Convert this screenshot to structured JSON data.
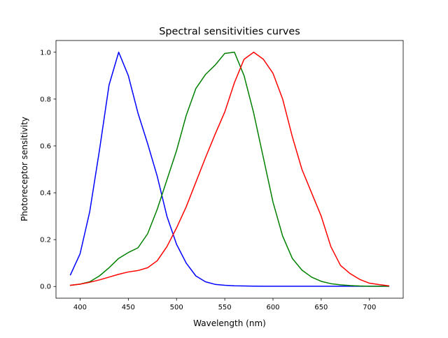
{
  "chart_data": {
    "type": "line",
    "title": "Spectral sensitivities curves",
    "xlabel": "Wavelength (nm)",
    "ylabel": "Photoreceptor sensitivity",
    "xlim": [
      375,
      735
    ],
    "ylim": [
      -0.05,
      1.05
    ],
    "xticks": [
      400,
      450,
      500,
      550,
      600,
      650,
      700
    ],
    "yticks": [
      0.0,
      0.2,
      0.4,
      0.6,
      0.8,
      1.0
    ],
    "ytick_labels": [
      "0.0",
      "0.2",
      "0.4",
      "0.6",
      "0.8",
      "1.0"
    ],
    "grid": false,
    "legend": "none",
    "x": [
      390,
      400,
      410,
      420,
      430,
      440,
      450,
      460,
      470,
      480,
      490,
      500,
      510,
      520,
      530,
      540,
      550,
      560,
      570,
      580,
      590,
      600,
      610,
      620,
      630,
      640,
      650,
      660,
      670,
      680,
      690,
      700,
      710,
      720
    ],
    "series": [
      {
        "color": "#0000ff",
        "values": [
          0.05,
          0.14,
          0.32,
          0.58,
          0.86,
          1.0,
          0.9,
          0.74,
          0.61,
          0.47,
          0.3,
          0.18,
          0.1,
          0.045,
          0.02,
          0.009,
          0.005,
          0.003,
          0.002,
          0.0015,
          0.001,
          0.001,
          0.001,
          0.001,
          0.001,
          0.001,
          0.001,
          0.001,
          0.001,
          0.001,
          0.001,
          0.001,
          0.001,
          0.001
        ]
      },
      {
        "color": "#008000",
        "values": [
          0.005,
          0.01,
          0.02,
          0.045,
          0.08,
          0.12,
          0.145,
          0.165,
          0.225,
          0.33,
          0.455,
          0.58,
          0.73,
          0.845,
          0.905,
          0.945,
          0.995,
          1.0,
          0.9,
          0.74,
          0.55,
          0.36,
          0.215,
          0.12,
          0.07,
          0.04,
          0.022,
          0.012,
          0.007,
          0.004,
          0.002,
          0.001,
          0.001,
          0.001
        ]
      },
      {
        "color": "#ff0000",
        "values": [
          0.005,
          0.01,
          0.018,
          0.028,
          0.04,
          0.052,
          0.062,
          0.068,
          0.08,
          0.11,
          0.17,
          0.25,
          0.34,
          0.445,
          0.55,
          0.65,
          0.745,
          0.87,
          0.97,
          1.0,
          0.97,
          0.91,
          0.8,
          0.64,
          0.5,
          0.4,
          0.3,
          0.17,
          0.09,
          0.055,
          0.03,
          0.014,
          0.008,
          0.003
        ]
      }
    ]
  }
}
